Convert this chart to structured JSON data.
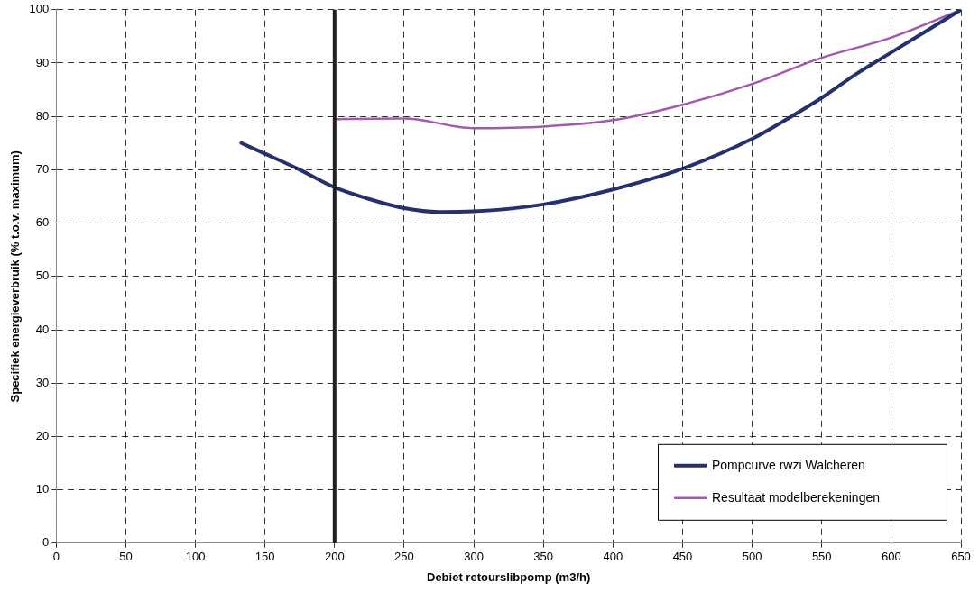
{
  "chart_data": {
    "type": "line",
    "xlabel": "Debiet retourslibpomp (m3/h)",
    "ylabel": "Specifiek energieverbruik (% t.o.v. maximum)",
    "xlim": [
      0,
      650
    ],
    "xticks": [
      0,
      50,
      100,
      150,
      200,
      250,
      300,
      350,
      400,
      450,
      500,
      550,
      600,
      650
    ],
    "ylim": [
      0,
      100
    ],
    "yticks": [
      0,
      10,
      20,
      30,
      40,
      50,
      60,
      70,
      80,
      90,
      100
    ],
    "grid": true,
    "legend": "bottom right",
    "marker": "none",
    "ref_lines": [
      {
        "axis": "x",
        "value": 200,
        "color": "#231f20"
      }
    ],
    "series": [
      {
        "name": "Pompcurve rwzi Walcheren",
        "color": "#24316e",
        "x": [
          133,
          150,
          175,
          200,
          225,
          250,
          275,
          300,
          350,
          400,
          450,
          500,
          525,
          550,
          575,
          600,
          650
        ],
        "values": [
          75,
          73,
          70,
          66.7,
          64.5,
          62.8,
          62.1,
          62.2,
          63.5,
          66.3,
          70.2,
          75.8,
          79.5,
          83.5,
          88,
          92,
          100
        ]
      },
      {
        "name": "Resultaat modelberekeningen",
        "color": "#a25aad",
        "x": [
          200,
          250,
          300,
          350,
          400,
          450,
          500,
          550,
          600,
          650
        ],
        "values": [
          79.5,
          79.6,
          77.8,
          78.1,
          79.3,
          82.2,
          86.1,
          91,
          94.8,
          100
        ]
      }
    ]
  }
}
